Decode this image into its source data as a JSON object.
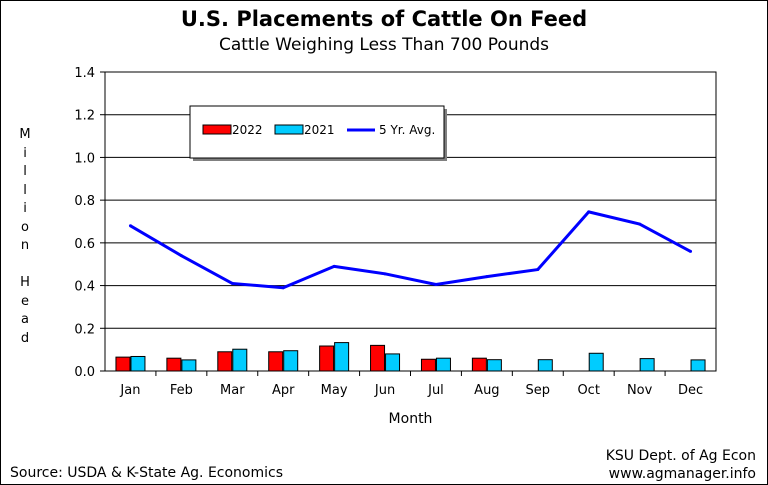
{
  "chart_data": {
    "type": "bar",
    "title": "U.S. Placements of Cattle On Feed",
    "subtitle": "Cattle Weighing Less Than 700 Pounds",
    "xlabel": "Month",
    "ylabel": "Million Head",
    "ylim": [
      0,
      1.4
    ],
    "yticks": [
      "0.0",
      "0.2",
      "0.4",
      "0.6",
      "0.8",
      "1.0",
      "1.2",
      "1.4"
    ],
    "categories": [
      "Jan",
      "Feb",
      "Mar",
      "Apr",
      "May",
      "Jun",
      "Jul",
      "Aug",
      "Sep",
      "Oct",
      "Nov",
      "Dec"
    ],
    "grid": true,
    "legend_position": "top-left",
    "series": [
      {
        "name": "2022",
        "type": "bar",
        "color": "#ff0000",
        "values": [
          0.065,
          0.06,
          0.09,
          0.09,
          0.117,
          0.12,
          0.055,
          0.06,
          null,
          null,
          null,
          null
        ]
      },
      {
        "name": "2021",
        "type": "bar",
        "color": "#00ccff",
        "values": [
          0.068,
          0.052,
          0.102,
          0.095,
          0.133,
          0.08,
          0.06,
          0.053,
          0.053,
          0.083,
          0.058,
          0.052
        ]
      },
      {
        "name": "5 Yr. Avg.",
        "type": "line",
        "color": "#0000ff",
        "values": [
          0.68,
          0.54,
          0.41,
          0.39,
          0.49,
          0.455,
          0.405,
          0.442,
          0.475,
          0.745,
          0.688,
          0.56
        ]
      }
    ]
  },
  "footer": {
    "source": "Source:   USDA & K-State Ag. Economics",
    "org_line1": "KSU Dept. of Ag Econ",
    "org_line2": "www.agmanager.info"
  }
}
